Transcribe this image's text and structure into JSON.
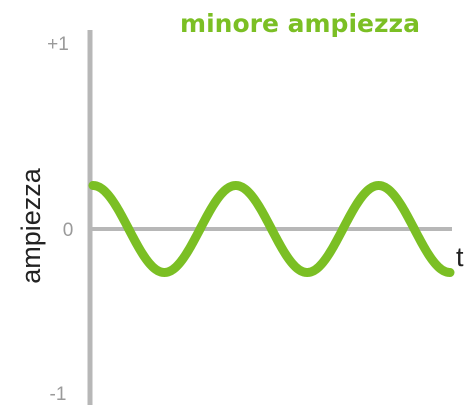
{
  "chart_data": {
    "type": "line",
    "title": "minore ampiezza",
    "ylabel": "ampiezza",
    "xlabel": "t",
    "y_ticks": [
      "+1",
      "0",
      "-1"
    ],
    "ylim": [
      -1,
      1
    ],
    "grid": false,
    "series": [
      {
        "color": "#7bbf24",
        "amplitude": 0.25,
        "cycles": 2.5,
        "starts_at": "peak",
        "ends_at": "trough"
      }
    ]
  },
  "colors": {
    "title": "#7bbf24",
    "axis": "#b7b7b7",
    "wave": "#7bbf24"
  }
}
